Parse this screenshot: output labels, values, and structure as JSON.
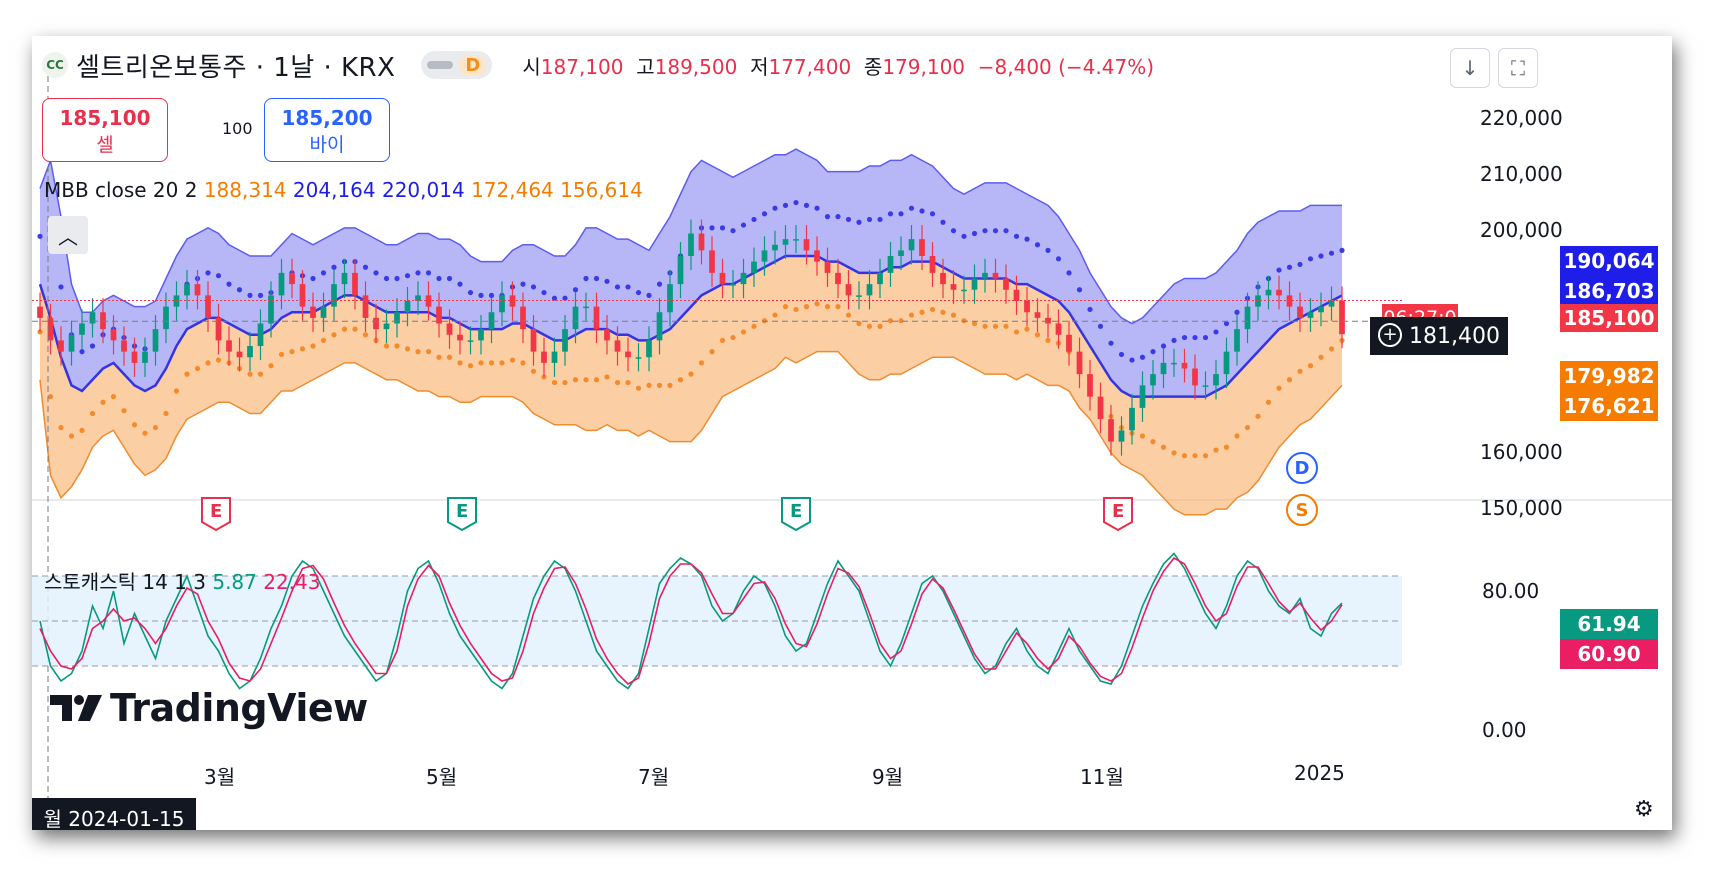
{
  "header": {
    "logo_text": "CC",
    "title": "셀트리온보통주 · 1날 · KRX",
    "interval_badge": "D",
    "ohlc": [
      {
        "label": "시",
        "value": "187,100"
      },
      {
        "label": "고",
        "value": "189,500"
      },
      {
        "label": "저",
        "value": "177,400"
      },
      {
        "label": "종",
        "value": "179,100"
      },
      {
        "label": "",
        "value": "−8,400 (−4.47%)"
      }
    ],
    "download_icon": "arrow-down-icon",
    "fullscreen_icon": "fullscreen-icon"
  },
  "trade": {
    "sell_price": "185,100",
    "sell_label": "셀",
    "quantity": "100",
    "buy_price": "185,200",
    "buy_label": "바이"
  },
  "mbb_legend": {
    "name": "MBB close 20 2",
    "values": [
      "188,314",
      "204,164",
      "220,014",
      "172,464",
      "156,614"
    ]
  },
  "stoch_legend": {
    "name": "스토캐스틱 14 1 3",
    "k": "5.87",
    "d": "22.43"
  },
  "price_axis": [
    "220,000",
    "210,000",
    "200,000",
    "160,000",
    "150,000"
  ],
  "stoch_axis": [
    "80.00",
    "0.00"
  ],
  "price_labels": [
    {
      "value": "190,064",
      "color": "#1e1ee8"
    },
    {
      "value": "186,703",
      "color": "#1e1ee8"
    },
    {
      "value": "185,100",
      "color": "#f23645"
    },
    {
      "value": "179,982",
      "color": "#f57c00"
    },
    {
      "value": "176,621",
      "color": "#f57c00"
    }
  ],
  "countdown": "06:27:0",
  "crosshair_price": "181,400",
  "stoch_labels": [
    {
      "value": "61.94",
      "color": "#089981"
    },
    {
      "value": "60.90",
      "color": "#e91e63"
    }
  ],
  "time_axis": [
    "3월",
    "5월",
    "7월",
    "9월",
    "11월",
    "2025"
  ],
  "crosshair_date": "월 2024-01-15",
  "earnings_markers": [
    {
      "label": "E",
      "color": "#e8304c"
    },
    {
      "label": "E",
      "color": "#089981"
    },
    {
      "label": "E",
      "color": "#089981"
    },
    {
      "label": "E",
      "color": "#e8304c"
    }
  ],
  "event_badges": [
    {
      "label": "D",
      "color": "#2962ff"
    },
    {
      "label": "S",
      "color": "#f57c00"
    }
  ],
  "watermark": "TradingView",
  "chart_data": [
    {
      "type": "candlestick",
      "indicator": "MBB close 20 2",
      "x_ticks": [
        "3월",
        "5월",
        "7월",
        "9월",
        "11월",
        "2025"
      ],
      "ylim": [
        145000,
        225000
      ],
      "y_ticks": [
        150000,
        160000,
        200000,
        210000,
        220000
      ],
      "series": [
        {
          "name": "close",
          "values": [
            182000,
            178000,
            176000,
            179000,
            181000,
            183000,
            180000,
            178000,
            176000,
            174000,
            176000,
            180000,
            184000,
            186000,
            188000,
            186000,
            182000,
            178000,
            176000,
            175000,
            177000,
            181000,
            186000,
            190000,
            188000,
            184000,
            182000,
            184000,
            188000,
            190000,
            186000,
            182000,
            180000,
            181000,
            183000,
            185000,
            186000,
            184000,
            181000,
            179000,
            178000,
            178000,
            180000,
            183000,
            186000,
            184000,
            180000,
            176000,
            174000,
            176000,
            180000,
            184000,
            184000,
            180000,
            178000,
            176000,
            175000,
            175000,
            178000,
            183000,
            188000,
            193000,
            197000,
            194000,
            190000,
            188000,
            188000,
            190000,
            192000,
            194000,
            195000,
            196000,
            196000,
            194000,
            192000,
            190000,
            188000,
            186000,
            186000,
            188000,
            190000,
            193000,
            194000,
            196000,
            193000,
            190000,
            188000,
            187000,
            187000,
            189000,
            190000,
            189000,
            187000,
            185000,
            183000,
            182000,
            181000,
            179000,
            176000,
            172000,
            168000,
            164000,
            160000,
            162000,
            166000,
            170000,
            172000,
            174000,
            174000,
            173000,
            170000,
            170000,
            172000,
            176000,
            180000,
            184000,
            186000,
            187000,
            186000,
            184000,
            182000,
            183000,
            184000,
            185100,
            179100
          ]
        },
        {
          "name": "basis",
          "values": [
            188000,
            182000,
            175000,
            170000,
            169000,
            171000,
            173000,
            174000,
            172000,
            170000,
            169000,
            170000,
            173000,
            177000,
            180000,
            181000,
            182000,
            182000,
            181000,
            180000,
            179000,
            179000,
            180000,
            182000,
            183000,
            183000,
            183000,
            184000,
            185000,
            186000,
            186000,
            185000,
            184000,
            183000,
            183000,
            183000,
            183000,
            183000,
            182000,
            182000,
            181000,
            180000,
            180000,
            180000,
            180000,
            181000,
            181000,
            180000,
            179000,
            178000,
            178000,
            179000,
            180000,
            180000,
            180000,
            179000,
            179000,
            178000,
            178000,
            179000,
            180000,
            182000,
            184000,
            186000,
            187000,
            188000,
            188000,
            189000,
            190000,
            191000,
            192000,
            193000,
            193000,
            193000,
            193000,
            192000,
            192000,
            191000,
            190000,
            190000,
            190000,
            191000,
            191000,
            192000,
            192000,
            192000,
            191000,
            190000,
            189000,
            189000,
            189000,
            189000,
            189000,
            188000,
            188000,
            187000,
            186000,
            185000,
            183000,
            180000,
            177000,
            174000,
            171000,
            169000,
            168000,
            168000,
            168000,
            168000,
            168000,
            168000,
            168000,
            168000,
            169000,
            170000,
            172000,
            174000,
            176000,
            178000,
            180000,
            181000,
            182000,
            183000,
            184000,
            185000,
            186000
          ]
        },
        {
          "name": "upper",
          "values": [
            205000,
            210000,
            200000,
            188000,
            183000,
            183000,
            185000,
            186000,
            185000,
            184000,
            184000,
            185000,
            189000,
            193000,
            196000,
            197000,
            198000,
            197000,
            195000,
            194000,
            193000,
            193000,
            193000,
            195000,
            197000,
            196000,
            195000,
            196000,
            197000,
            198000,
            198000,
            197000,
            196000,
            195000,
            195000,
            196000,
            197000,
            197000,
            196000,
            196000,
            195000,
            193000,
            192000,
            192000,
            192000,
            194000,
            195000,
            195000,
            194000,
            193000,
            193000,
            195000,
            198000,
            198000,
            197000,
            196000,
            196000,
            195000,
            194000,
            197000,
            200000,
            204000,
            208000,
            210000,
            209000,
            208000,
            207000,
            208000,
            209000,
            210000,
            211000,
            211000,
            212000,
            211000,
            210000,
            208000,
            208000,
            208000,
            208000,
            209000,
            209000,
            210000,
            210000,
            211000,
            210000,
            209000,
            207000,
            205000,
            204000,
            205000,
            206000,
            206000,
            206000,
            205000,
            204000,
            203000,
            202000,
            200000,
            197000,
            194000,
            190000,
            187000,
            184000,
            182000,
            181000,
            182000,
            184000,
            186000,
            188000,
            189000,
            189000,
            189000,
            190000,
            192000,
            194000,
            197000,
            199000,
            200000,
            201000,
            201000,
            201000,
            202000,
            202000,
            202000,
            202000
          ]
        },
        {
          "name": "lower",
          "values": [
            171000,
            154000,
            150000,
            152000,
            155000,
            159000,
            161000,
            162000,
            159000,
            156000,
            154000,
            155000,
            157000,
            161000,
            164000,
            165000,
            166000,
            167000,
            167000,
            166000,
            165000,
            165000,
            167000,
            169000,
            169000,
            170000,
            171000,
            172000,
            173000,
            174000,
            174000,
            173000,
            172000,
            171000,
            171000,
            170000,
            169000,
            169000,
            168000,
            168000,
            167000,
            167000,
            168000,
            168000,
            168000,
            168000,
            167000,
            165000,
            164000,
            163000,
            163000,
            163000,
            162000,
            162000,
            163000,
            162000,
            162000,
            161000,
            162000,
            161000,
            160000,
            160000,
            160000,
            162000,
            165000,
            168000,
            169000,
            170000,
            171000,
            172000,
            173000,
            175000,
            174000,
            175000,
            176000,
            176000,
            176000,
            174000,
            172000,
            171000,
            171000,
            172000,
            172000,
            173000,
            174000,
            175000,
            175000,
            175000,
            174000,
            173000,
            172000,
            172000,
            172000,
            171000,
            172000,
            171000,
            170000,
            170000,
            169000,
            166000,
            164000,
            161000,
            158000,
            156000,
            155000,
            154000,
            152000,
            150000,
            148000,
            147000,
            147000,
            147000,
            148000,
            148000,
            150000,
            151000,
            153000,
            156000,
            159000,
            161000,
            163000,
            164000,
            166000,
            168000,
            170000
          ]
        }
      ]
    },
    {
      "type": "line",
      "indicator": "스토캐스틱 14 1 3",
      "ylim": [
        0,
        100
      ],
      "y_ticks": [
        0,
        80
      ],
      "series": [
        {
          "name": "%K",
          "values": [
            50,
            20,
            10,
            15,
            30,
            60,
            45,
            70,
            35,
            55,
            40,
            25,
            50,
            65,
            80,
            60,
            40,
            30,
            15,
            5,
            10,
            25,
            45,
            60,
            80,
            90,
            85,
            70,
            55,
            40,
            30,
            20,
            10,
            15,
            40,
            70,
            85,
            90,
            75,
            55,
            40,
            30,
            20,
            10,
            5,
            15,
            40,
            65,
            80,
            90,
            85,
            70,
            50,
            30,
            20,
            10,
            5,
            15,
            45,
            75,
            85,
            92,
            88,
            80,
            60,
            50,
            55,
            70,
            80,
            75,
            60,
            40,
            30,
            35,
            55,
            75,
            90,
            80,
            70,
            50,
            30,
            20,
            35,
            55,
            75,
            80,
            70,
            55,
            40,
            25,
            15,
            20,
            35,
            45,
            30,
            20,
            15,
            30,
            45,
            30,
            20,
            10,
            8,
            20,
            40,
            60,
            75,
            88,
            95,
            85,
            70,
            55,
            45,
            60,
            80,
            90,
            85,
            70,
            60,
            55,
            65,
            45,
            40,
            55,
            61.94
          ]
        },
        {
          "name": "%D",
          "values": [
            45,
            30,
            20,
            18,
            25,
            45,
            50,
            58,
            50,
            52,
            45,
            35,
            45,
            60,
            72,
            68,
            50,
            38,
            22,
            12,
            10,
            18,
            35,
            52,
            70,
            85,
            87,
            78,
            62,
            47,
            35,
            25,
            15,
            15,
            30,
            60,
            78,
            87,
            80,
            62,
            47,
            35,
            25,
            15,
            10,
            12,
            30,
            55,
            72,
            85,
            86,
            75,
            58,
            38,
            25,
            15,
            8,
            12,
            35,
            65,
            80,
            88,
            88,
            82,
            68,
            55,
            55,
            65,
            75,
            76,
            65,
            48,
            35,
            33,
            48,
            68,
            85,
            82,
            73,
            55,
            35,
            25,
            30,
            48,
            68,
            78,
            72,
            58,
            43,
            28,
            18,
            18,
            30,
            42,
            35,
            25,
            18,
            25,
            40,
            33,
            22,
            13,
            10,
            15,
            32,
            52,
            70,
            83,
            92,
            88,
            75,
            60,
            50,
            55,
            73,
            86,
            86,
            75,
            63,
            56,
            62,
            52,
            44,
            50,
            60.9
          ]
        }
      ]
    }
  ]
}
